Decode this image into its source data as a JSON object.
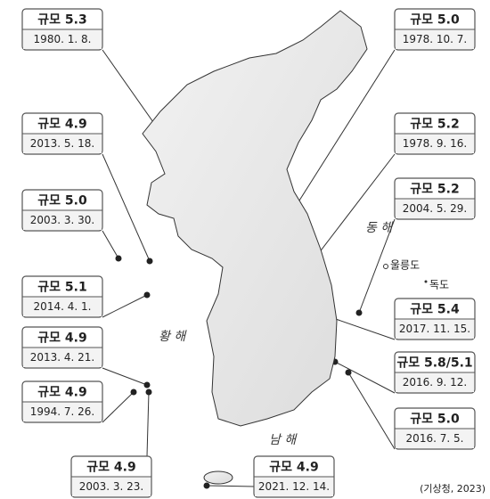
{
  "callouts": [
    {
      "magnitude": "규모 5.3",
      "date": "1980. 1. 8."
    },
    {
      "magnitude": "규모 5.0",
      "date": "1978. 10. 7."
    },
    {
      "magnitude": "규모 4.9",
      "date": "2013. 5. 18."
    },
    {
      "magnitude": "규모 5.2",
      "date": "1978. 9. 16."
    },
    {
      "magnitude": "규모 5.0",
      "date": "2003. 3. 30."
    },
    {
      "magnitude": "규모 5.2",
      "date": "2004. 5. 29."
    },
    {
      "magnitude": "규모 5.1",
      "date": "2014. 4. 1."
    },
    {
      "magnitude": "규모 5.4",
      "date": "2017. 11. 15."
    },
    {
      "magnitude": "규모 4.9",
      "date": "2013. 4. 21."
    },
    {
      "magnitude": "규모 5.8/5.1",
      "date": "2016. 9. 12."
    },
    {
      "magnitude": "규모 4.9",
      "date": "1994. 7. 26."
    },
    {
      "magnitude": "규모 5.0",
      "date": "2016. 7. 5."
    },
    {
      "magnitude": "규모 4.9",
      "date": "2003. 3. 23."
    },
    {
      "magnitude": "규모 4.9",
      "date": "2021. 12. 14."
    }
  ],
  "labels": {
    "east_sea": "동 해",
    "yellow_sea": "황 해",
    "south_sea": "남 해",
    "ulleungdo": "울릉도",
    "dokdo": "독도"
  },
  "source": "(기상청, 2023)"
}
